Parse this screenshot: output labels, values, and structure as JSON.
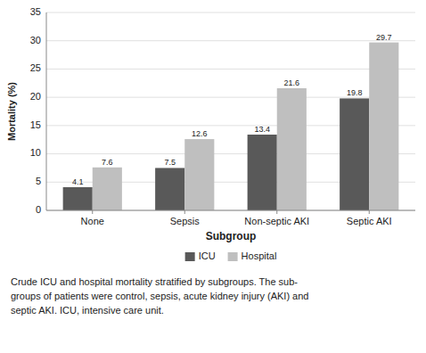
{
  "chart_data": {
    "type": "bar",
    "xlabel": "Subgroup",
    "ylabel": "Mortality (%)",
    "categories": [
      "None",
      "Sepsis",
      "Non-septic AKI",
      "Septic AKI"
    ],
    "series": [
      {
        "name": "ICU",
        "color": "#595959",
        "values": [
          4.1,
          7.5,
          13.4,
          19.8
        ]
      },
      {
        "name": "Hospital",
        "color": "#bfbfbf",
        "values": [
          7.6,
          12.6,
          21.6,
          29.7
        ]
      }
    ],
    "ylim": [
      0,
      35
    ],
    "yticks": [
      0,
      5,
      10,
      15,
      20,
      25,
      30,
      35
    ],
    "grid": true,
    "data_labels": true,
    "legend": "bottom",
    "annotations": [
      "Crude ICU and hospital mortality stratified by subgroups. The sub-",
      "groups of patients were control, sepsis, acute kidney injury (AKI) and",
      "septic AKI. ICU, intensive care unit."
    ]
  }
}
